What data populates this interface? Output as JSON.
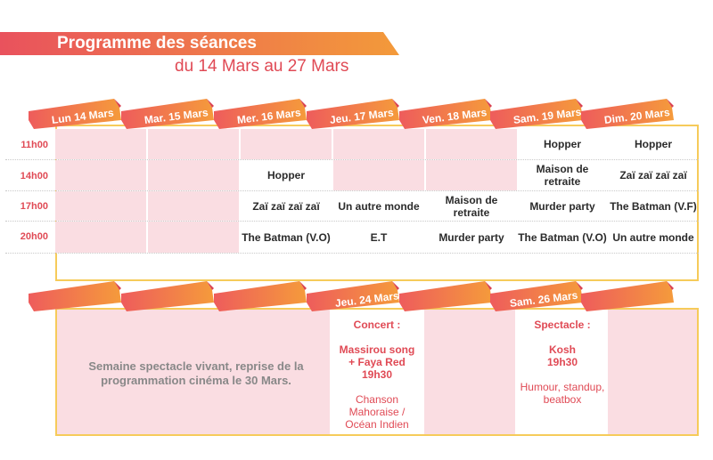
{
  "colors": {
    "accent": "#e04a55",
    "orange": "#f28c38",
    "pink": "#fadde2",
    "border": "#f6cb5a"
  },
  "header": {
    "title": "Programme des séances",
    "subtitle": "du 14 Mars au 27 Mars"
  },
  "week1": {
    "days": [
      "Lun 14 Mars",
      "Mar. 15 Mars",
      "Mer. 16 Mars",
      "Jeu. 17 Mars",
      "Ven. 18 Mars",
      "Sam. 19 Mars",
      "Dim. 20 Mars"
    ],
    "times": [
      "11h00",
      "14h00",
      "17h00",
      "20h00"
    ],
    "grid": [
      [
        "",
        "",
        "",
        "",
        "",
        "Hopper",
        "Hopper"
      ],
      [
        "",
        "",
        "Hopper",
        "",
        "",
        "Maison de retraite",
        "Zaï zaï zaï zaï"
      ],
      [
        "",
        "",
        "Zaï zaï zaï zaï",
        "Un autre monde",
        "Maison de retraite",
        "Murder party",
        "The Batman (V.F)"
      ],
      [
        "",
        "",
        "The Batman (V.O)",
        "E.T",
        "Murder party",
        "The Batman (V.O)",
        "Un autre monde"
      ]
    ]
  },
  "week2": {
    "day_labels": {
      "thursday": "Jeu. 24 Mars",
      "saturday": "Sam. 26 Mars"
    },
    "note": "Semaine spectacle vivant, reprise de la programmation cinéma le 30 Mars.",
    "concert": {
      "heading": "Concert :",
      "artist": "Massirou song + Faya Red",
      "time": "19h30",
      "desc": "Chanson Mahoraise / Océan Indien"
    },
    "spectacle": {
      "heading": "Spectacle :",
      "artist": "Kosh",
      "time": "19h30",
      "desc": "Humour, standup, beatbox"
    }
  }
}
